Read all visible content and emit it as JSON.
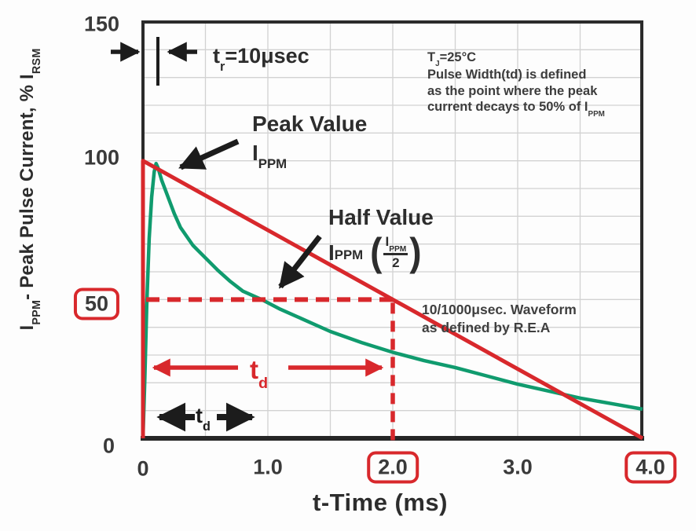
{
  "colors": {
    "annotation_red": "#d8282c",
    "waveform_green": "#109b6e",
    "rea_red": "#d8282c",
    "axis_dark": "#2b2b2b",
    "grid_gray": "#d2d2d2"
  },
  "chart_data": {
    "type": "line",
    "title": "",
    "xlabel": "t-Time (ms)",
    "ylabel_parts": {
      "pre": "I",
      "sub1": "PPM",
      "mid": "- Peak Pulse Current, % I",
      "sub2": "RSM"
    },
    "xlim": [
      0,
      4
    ],
    "ylim": [
      0,
      150
    ],
    "grid": {
      "x_step_ms": 0.5,
      "y_step_pct": 10,
      "grid_on": true
    },
    "x_ticks": [
      {
        "label": "0",
        "value": 0,
        "dy": 2
      },
      {
        "label": "1.0",
        "value": 1
      },
      {
        "label": "2.0",
        "value": 2,
        "boxed": true
      },
      {
        "label": "3.0",
        "value": 3
      },
      {
        "label": "4.0",
        "value": 4,
        "dx": 10,
        "boxed": true
      }
    ],
    "y_ticks": [
      {
        "label": "150",
        "value": 150,
        "dy": 3
      },
      {
        "label": "100",
        "value": 100,
        "dy": -4
      },
      {
        "label": "50",
        "value": 50,
        "boxed": true,
        "dy": 6
      },
      {
        "label": "0",
        "value": 0,
        "dy": 10,
        "dx": -6
      }
    ],
    "series": [
      {
        "name": "actual-pulse-waveform",
        "color": "#109b6e",
        "points": [
          [
            0,
            0
          ],
          [
            0.015,
            22
          ],
          [
            0.03,
            48
          ],
          [
            0.05,
            72
          ],
          [
            0.07,
            87
          ],
          [
            0.09,
            96
          ],
          [
            0.105,
            99
          ],
          [
            0.12,
            97.5
          ],
          [
            0.15,
            93
          ],
          [
            0.2,
            87
          ],
          [
            0.25,
            81
          ],
          [
            0.3,
            76
          ],
          [
            0.4,
            69.5
          ],
          [
            0.5,
            65
          ],
          [
            0.6,
            60.5
          ],
          [
            0.7,
            56.5
          ],
          [
            0.8,
            53
          ],
          [
            0.95,
            50
          ],
          [
            1.1,
            46.5
          ],
          [
            1.3,
            42.5
          ],
          [
            1.5,
            38.5
          ],
          [
            1.75,
            34.5
          ],
          [
            2.0,
            31
          ],
          [
            2.25,
            28
          ],
          [
            2.5,
            25.5
          ],
          [
            2.75,
            22.5
          ],
          [
            3.0,
            19.5
          ],
          [
            3.25,
            17
          ],
          [
            3.5,
            14.5
          ],
          [
            3.75,
            12.5
          ],
          [
            4.0,
            10.5
          ]
        ]
      },
      {
        "name": "rea-10-1000-waveform",
        "color": "#d8282c",
        "points": [
          [
            0,
            0
          ],
          [
            0,
            100
          ],
          [
            4,
            0
          ]
        ]
      }
    ],
    "reference_lines": {
      "half_value_pct": 50,
      "td_ms": 2.0
    }
  },
  "annotations": {
    "tr_label": {
      "pre": "t",
      "sub": "r",
      "post": "=10μsec"
    },
    "cond_block": {
      "line1_pre": "T",
      "line1_sub": "J",
      "line1_post": "=25°C",
      "line2": "Pulse Width(td) is defined",
      "line3": "as the point where the peak",
      "line4_pre": "current decays to 50% of I",
      "line4_sub": "PPM"
    },
    "peak_label": {
      "line1": "Peak Value",
      "line2_pre": "I",
      "line2_sub": "PPM"
    },
    "half_label": {
      "line1": "Half Value",
      "line2_pre": "I",
      "line2_sub": "PPM",
      "paren_open": "(",
      "paren_close": ")",
      "frac_num_pre": "I",
      "frac_num_sub": "PPM",
      "frac_den": "2"
    },
    "rea_note": {
      "line1": "10/1000μsec. Waveform",
      "line2": "as defined by R.E.A"
    },
    "td_red": {
      "pre": "t",
      "sub": "d"
    },
    "td_black": {
      "pre": "t",
      "sub": "d"
    }
  }
}
